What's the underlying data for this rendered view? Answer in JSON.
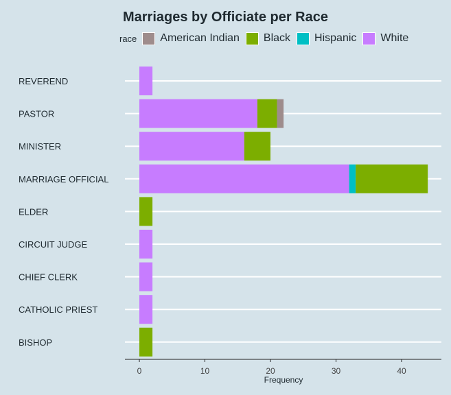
{
  "chart_data": {
    "type": "bar",
    "orientation": "horizontal",
    "stacked": true,
    "title": "Marriages by Officiate per Race",
    "xlabel": "Frequency",
    "ylabel": "",
    "xlim": [
      0,
      45
    ],
    "xticks": [
      0,
      10,
      20,
      30,
      40
    ],
    "grid": true,
    "legend_position": "top",
    "legend_title": "race",
    "categories": [
      "REVEREND",
      "PASTOR",
      "MINISTER",
      "MARRIAGE OFFICIAL",
      "ELDER",
      "CIRCUIT JUDGE",
      "CHIEF CLERK",
      "CATHOLIC PRIEST",
      "BISHOP"
    ],
    "series": [
      {
        "name": "White",
        "color": "#c77cff",
        "values": [
          2,
          18,
          16,
          32,
          0,
          2,
          2,
          2,
          0
        ]
      },
      {
        "name": "Hispanic",
        "color": "#00bfc4",
        "values": [
          0,
          0,
          0,
          1,
          0,
          0,
          0,
          0,
          0
        ]
      },
      {
        "name": "Black",
        "color": "#7cae00",
        "values": [
          0,
          3,
          4,
          11,
          2,
          0,
          0,
          0,
          2
        ]
      },
      {
        "name": "American Indian",
        "color": "#9e8c8c",
        "values": [
          0,
          1,
          0,
          0,
          0,
          0,
          0,
          0,
          0
        ]
      }
    ],
    "legend_order": [
      "American Indian",
      "Black",
      "Hispanic",
      "White"
    ]
  }
}
